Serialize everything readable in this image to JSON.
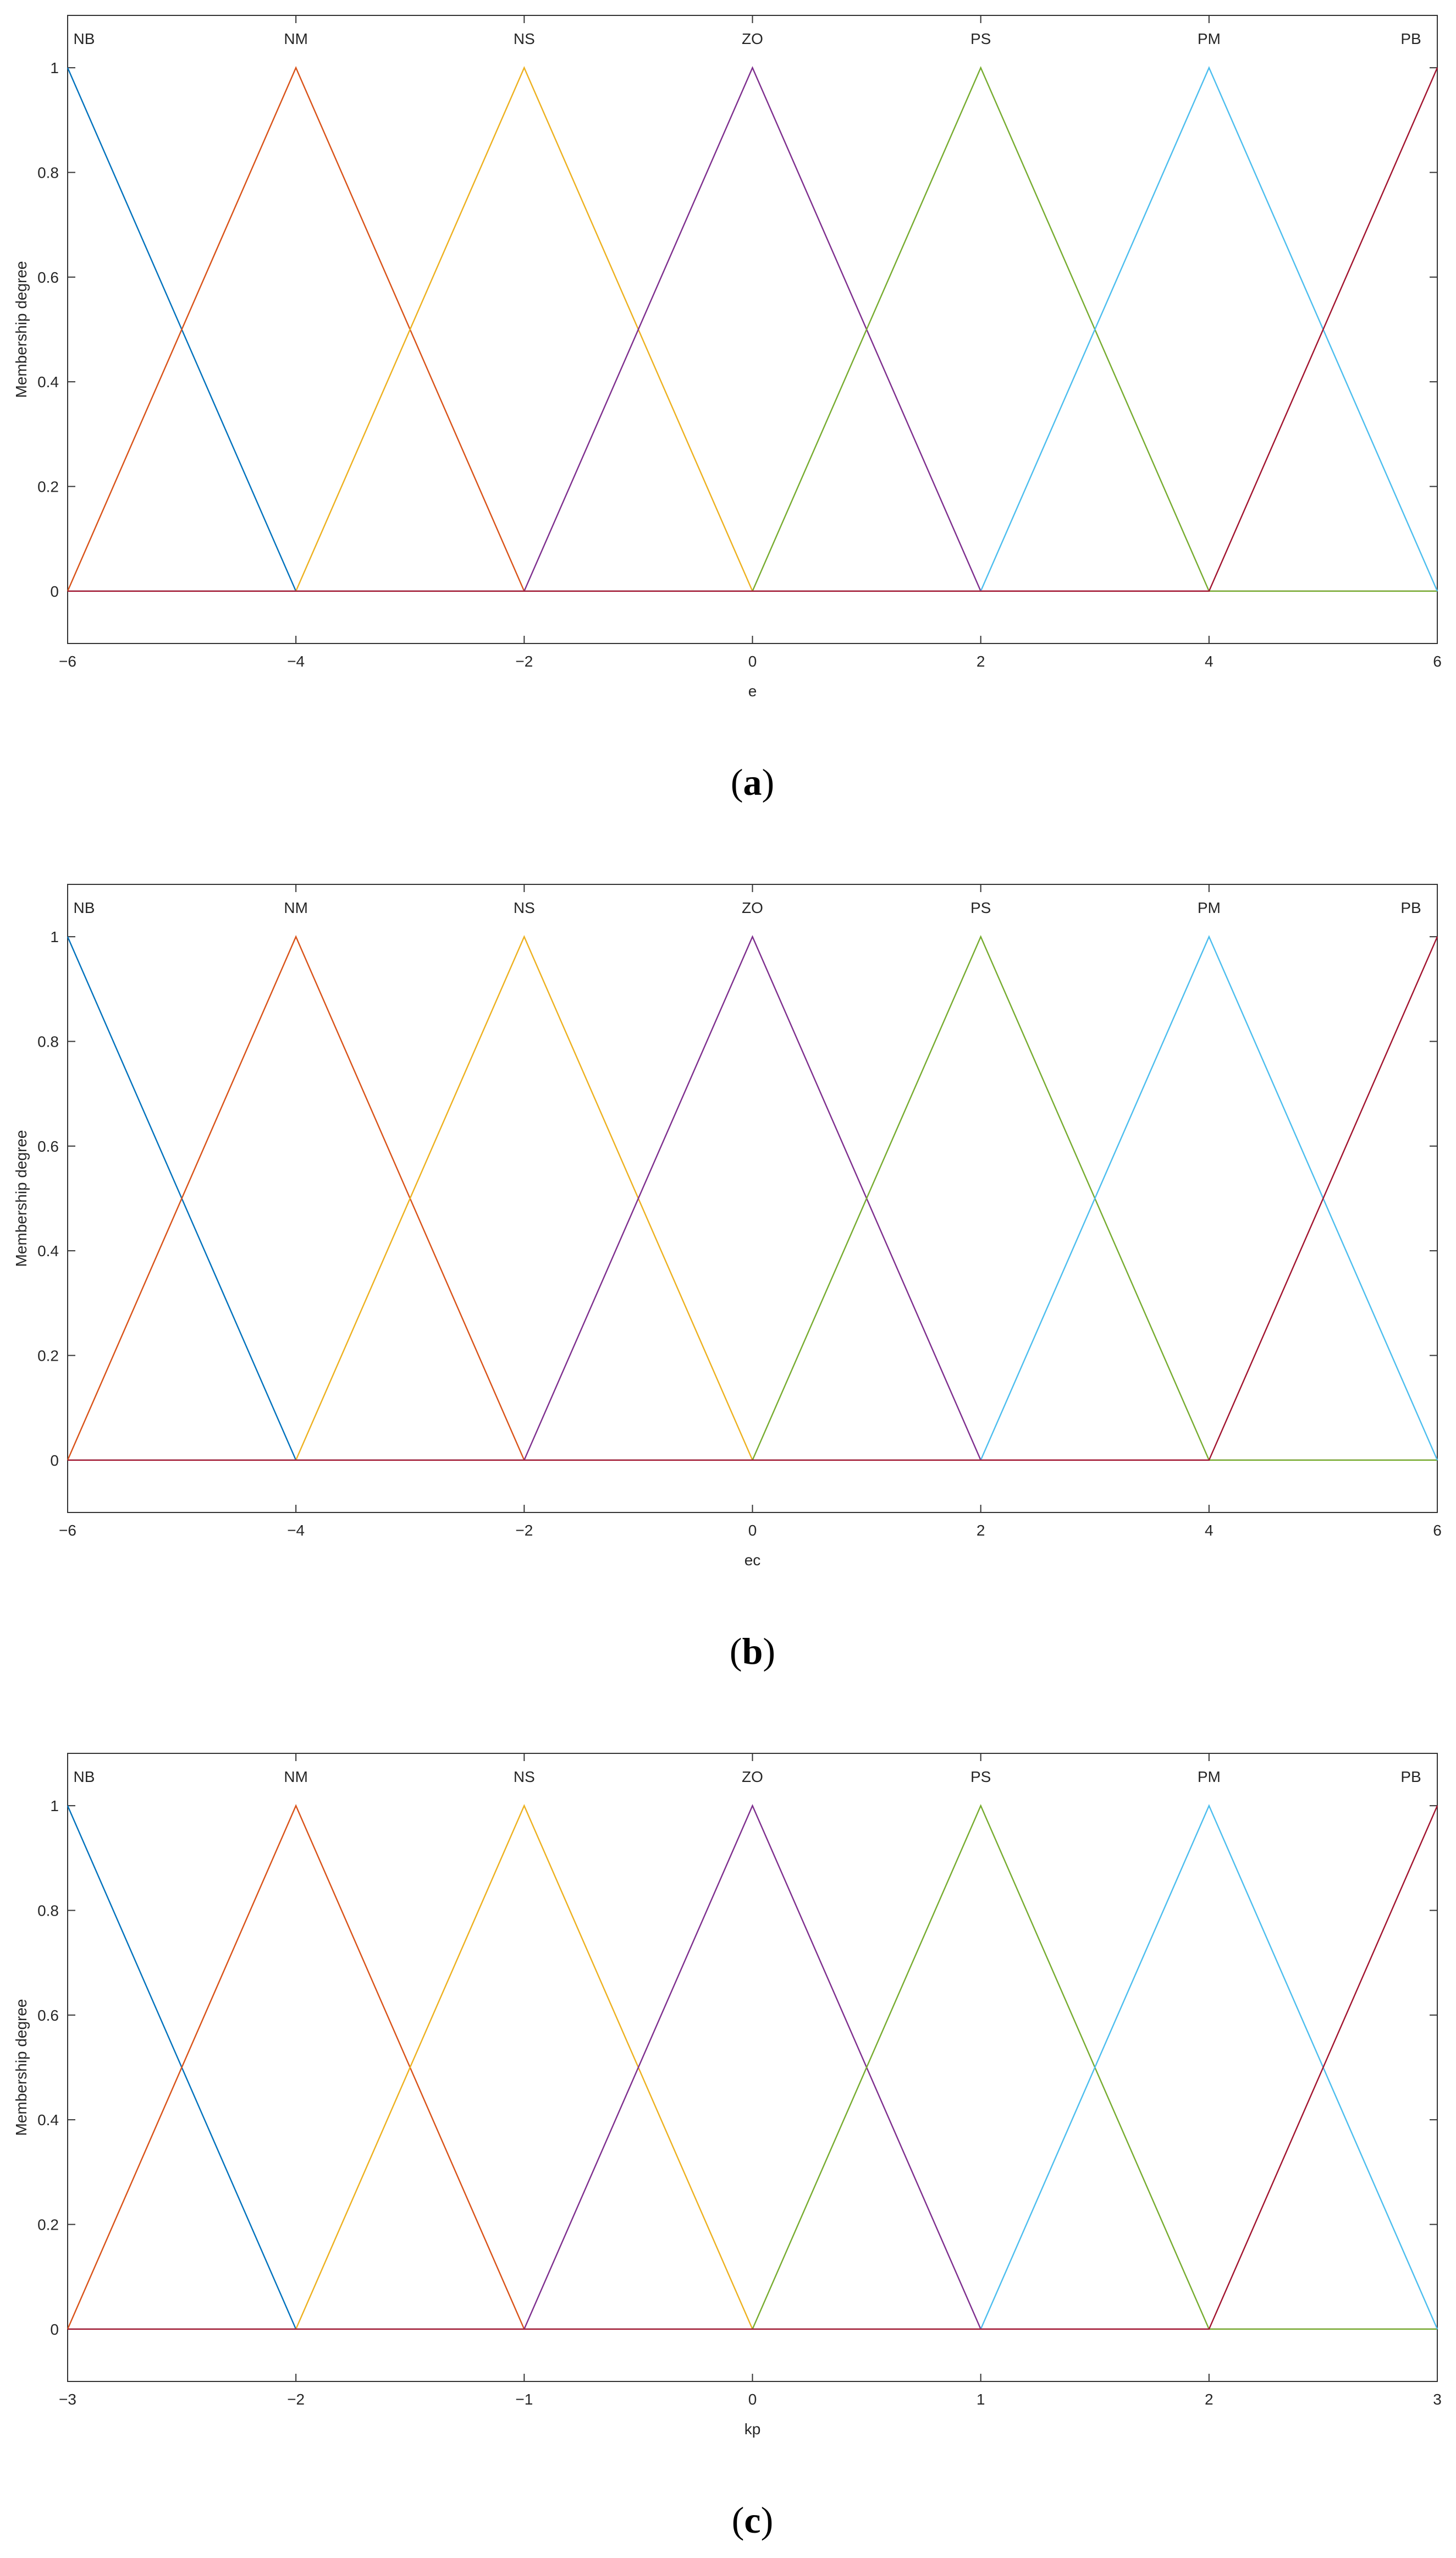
{
  "chart_data": [
    {
      "type": "line",
      "panel": "a",
      "caption_letter": "a",
      "xlabel": "e",
      "ylabel": "Membership degree",
      "xlim": [
        -6,
        6
      ],
      "ylim": [
        -0.1,
        1.1
      ],
      "xticks": [
        "-6",
        "-4",
        "-2",
        "0",
        "2",
        "4",
        "6"
      ],
      "yticks": [
        "0",
        "0.2",
        "0.4",
        "0.6",
        "0.8",
        "1"
      ],
      "grid": false,
      "series": [
        {
          "name": "NB",
          "color": "#0072BD",
          "x": [
            -6,
            -6,
            -4
          ],
          "y": [
            1,
            1,
            0
          ]
        },
        {
          "name": "NM",
          "color": "#D95319",
          "x": [
            -6,
            -4,
            -2
          ],
          "y": [
            0,
            1,
            0
          ]
        },
        {
          "name": "NS",
          "color": "#EDB120",
          "x": [
            -4,
            -2,
            0
          ],
          "y": [
            0,
            1,
            0
          ]
        },
        {
          "name": "ZO",
          "color": "#7E2F8E",
          "x": [
            -2,
            0,
            2
          ],
          "y": [
            0,
            1,
            0
          ]
        },
        {
          "name": "PS",
          "color": "#77AC30",
          "x": [
            0,
            2,
            4
          ],
          "y": [
            0,
            1,
            0
          ]
        },
        {
          "name": "PM",
          "color": "#4DBEEE",
          "x": [
            2,
            4,
            6
          ],
          "y": [
            0,
            1,
            0
          ]
        },
        {
          "name": "PB",
          "color": "#A2142F",
          "x": [
            4,
            6,
            6
          ],
          "y": [
            0,
            1,
            1
          ]
        }
      ]
    },
    {
      "type": "line",
      "panel": "b",
      "caption_letter": "b",
      "xlabel": "ec",
      "ylabel": "Membership degree",
      "xlim": [
        -6,
        6
      ],
      "ylim": [
        -0.1,
        1.1
      ],
      "xticks": [
        "-6",
        "-4",
        "-2",
        "0",
        "2",
        "4",
        "6"
      ],
      "yticks": [
        "0",
        "0.2",
        "0.4",
        "0.6",
        "0.8",
        "1"
      ],
      "grid": false,
      "series": [
        {
          "name": "NB",
          "color": "#0072BD",
          "x": [
            -6,
            -6,
            -4
          ],
          "y": [
            1,
            1,
            0
          ]
        },
        {
          "name": "NM",
          "color": "#D95319",
          "x": [
            -6,
            -4,
            -2
          ],
          "y": [
            0,
            1,
            0
          ]
        },
        {
          "name": "NS",
          "color": "#EDB120",
          "x": [
            -4,
            -2,
            0
          ],
          "y": [
            0,
            1,
            0
          ]
        },
        {
          "name": "ZO",
          "color": "#7E2F8E",
          "x": [
            -2,
            0,
            2
          ],
          "y": [
            0,
            1,
            0
          ]
        },
        {
          "name": "PS",
          "color": "#77AC30",
          "x": [
            0,
            2,
            4
          ],
          "y": [
            0,
            1,
            0
          ]
        },
        {
          "name": "PM",
          "color": "#4DBEEE",
          "x": [
            2,
            4,
            6
          ],
          "y": [
            0,
            1,
            0
          ]
        },
        {
          "name": "PB",
          "color": "#A2142F",
          "x": [
            4,
            6,
            6
          ],
          "y": [
            0,
            1,
            1
          ]
        }
      ]
    },
    {
      "type": "line",
      "panel": "c",
      "caption_letter": "c",
      "xlabel": "kp",
      "ylabel": "Membership degree",
      "xlim": [
        -3,
        3
      ],
      "ylim": [
        -0.1,
        1.1
      ],
      "xticks": [
        "-3",
        "-2",
        "-1",
        "0",
        "1",
        "2",
        "3"
      ],
      "yticks": [
        "0",
        "0.2",
        "0.4",
        "0.6",
        "0.8",
        "1"
      ],
      "grid": false,
      "series": [
        {
          "name": "NB",
          "color": "#0072BD",
          "x": [
            -3,
            -3,
            -2
          ],
          "y": [
            1,
            1,
            0
          ]
        },
        {
          "name": "NM",
          "color": "#D95319",
          "x": [
            -3,
            -2,
            -1
          ],
          "y": [
            0,
            1,
            0
          ]
        },
        {
          "name": "NS",
          "color": "#EDB120",
          "x": [
            -2,
            -1,
            0
          ],
          "y": [
            0,
            1,
            0
          ]
        },
        {
          "name": "ZO",
          "color": "#7E2F8E",
          "x": [
            -1,
            0,
            1
          ],
          "y": [
            0,
            1,
            0
          ]
        },
        {
          "name": "PS",
          "color": "#77AC30",
          "x": [
            0,
            1,
            2
          ],
          "y": [
            0,
            1,
            0
          ]
        },
        {
          "name": "PM",
          "color": "#4DBEEE",
          "x": [
            1,
            2,
            3
          ],
          "y": [
            0,
            1,
            0
          ]
        },
        {
          "name": "PB",
          "color": "#A2142F",
          "x": [
            2,
            3,
            3
          ],
          "y": [
            0,
            1,
            1
          ]
        }
      ]
    }
  ]
}
